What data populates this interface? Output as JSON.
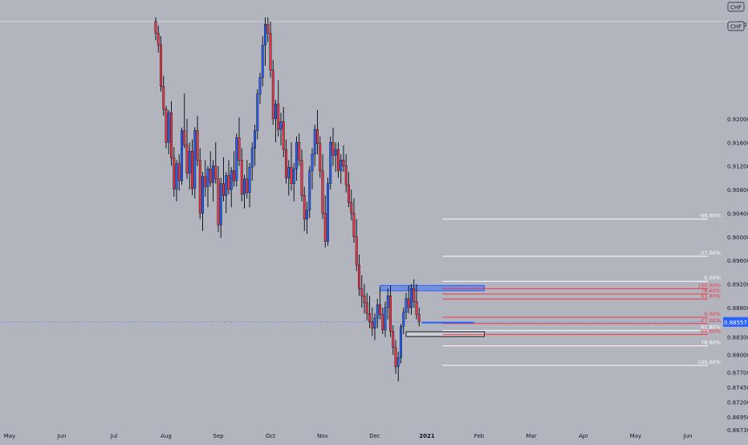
{
  "chart_data": {
    "type": "candlestick",
    "symbol_label": "CHF",
    "currency_label": "CHF",
    "top_partial_label": "0.9360",
    "top_line_price": 0.9365,
    "y_ticks": [
      "0.92000",
      "0.91600",
      "0.91200",
      "0.90800",
      "0.90400",
      "0.90000",
      "0.89600",
      "0.89200",
      "0.88800",
      "0.88300",
      "0.88000",
      "0.87700",
      "0.87450",
      "0.87200",
      "0.86950",
      "0.86730"
    ],
    "y_tick_values": [
      0.92,
      0.916,
      0.912,
      0.908,
      0.904,
      0.9,
      0.896,
      0.892,
      0.888,
      0.883,
      0.88,
      0.877,
      0.8745,
      0.872,
      0.8695,
      0.8673
    ],
    "ylim": [
      0.8658,
      0.937
    ],
    "x_labels": [
      {
        "label": "May",
        "idx": 0
      },
      {
        "label": "Jun",
        "idx": 10
      },
      {
        "label": "Jul",
        "idx": 20
      },
      {
        "label": "Aug",
        "idx": 30
      },
      {
        "label": "Sep",
        "idx": 40
      },
      {
        "label": "Oct",
        "idx": 50
      },
      {
        "label": "Nov",
        "idx": 60
      },
      {
        "label": "Dec",
        "idx": 70
      },
      {
        "label": "2021",
        "idx": 80,
        "bold": true
      },
      {
        "label": "Feb",
        "idx": 90
      },
      {
        "label": "Mar",
        "idx": 100
      },
      {
        "label": "Apr",
        "idx": 110
      },
      {
        "label": "May",
        "idx": 120
      },
      {
        "label": "Jun",
        "idx": 130
      }
    ],
    "current_price": {
      "label": "0.88557",
      "value": 0.88557,
      "color": "#2962ff"
    },
    "colors": {
      "up": "#2962ff",
      "down": "#f23645",
      "background": "#b2b5be",
      "text": "#131722",
      "fib_white": "#ffffff",
      "fib_red": "#f23645",
      "box_blue": "#2962ff"
    },
    "candles_start": 28,
    "candles_step": 0.5,
    "candles": [
      [
        0.9365,
        0.9372,
        0.9333,
        0.9345
      ],
      [
        0.9345,
        0.9358,
        0.9312,
        0.9325
      ],
      [
        0.9325,
        0.934,
        0.9246,
        0.9255
      ],
      [
        0.9255,
        0.9273,
        0.9205,
        0.9216
      ],
      [
        0.9216,
        0.9222,
        0.915,
        0.916
      ],
      [
        0.916,
        0.9215,
        0.914,
        0.921
      ],
      [
        0.921,
        0.923,
        0.912,
        0.9134
      ],
      [
        0.9134,
        0.9152,
        0.9068,
        0.9081
      ],
      [
        0.9081,
        0.913,
        0.906,
        0.9124
      ],
      [
        0.9124,
        0.914,
        0.9078,
        0.9095
      ],
      [
        0.9095,
        0.9185,
        0.9088,
        0.918
      ],
      [
        0.918,
        0.9243,
        0.915,
        0.9155
      ],
      [
        0.9155,
        0.92,
        0.9098,
        0.9108
      ],
      [
        0.9108,
        0.916,
        0.908,
        0.9145
      ],
      [
        0.9145,
        0.9165,
        0.907,
        0.9082
      ],
      [
        0.9082,
        0.9186,
        0.9065,
        0.918
      ],
      [
        0.918,
        0.9205,
        0.912,
        0.913
      ],
      [
        0.913,
        0.915,
        0.903,
        0.904
      ],
      [
        0.904,
        0.911,
        0.901,
        0.9102
      ],
      [
        0.9102,
        0.913,
        0.9068,
        0.9085
      ],
      [
        0.9085,
        0.912,
        0.905,
        0.9115
      ],
      [
        0.9115,
        0.9145,
        0.9085,
        0.9092
      ],
      [
        0.9092,
        0.913,
        0.906,
        0.912
      ],
      [
        0.912,
        0.916,
        0.909,
        0.9098
      ],
      [
        0.9098,
        0.912,
        0.9008,
        0.902
      ],
      [
        0.902,
        0.91,
        0.8998,
        0.909
      ],
      [
        0.909,
        0.9135,
        0.906,
        0.907
      ],
      [
        0.907,
        0.911,
        0.904,
        0.9104
      ],
      [
        0.9104,
        0.913,
        0.9072,
        0.908
      ],
      [
        0.908,
        0.9118,
        0.905,
        0.9112
      ],
      [
        0.9112,
        0.9145,
        0.9085,
        0.9095
      ],
      [
        0.9095,
        0.9175,
        0.9085,
        0.9168
      ],
      [
        0.9168,
        0.9202,
        0.912,
        0.913
      ],
      [
        0.913,
        0.915,
        0.906,
        0.9072
      ],
      [
        0.9072,
        0.9105,
        0.9048,
        0.9098
      ],
      [
        0.9098,
        0.913,
        0.9065,
        0.9075
      ],
      [
        0.9075,
        0.9125,
        0.905,
        0.9118
      ],
      [
        0.9118,
        0.916,
        0.9095,
        0.915
      ],
      [
        0.915,
        0.919,
        0.912,
        0.918
      ],
      [
        0.918,
        0.925,
        0.9165,
        0.9242
      ],
      [
        0.9242,
        0.9278,
        0.9225,
        0.927
      ],
      [
        0.927,
        0.934,
        0.9255,
        0.9325
      ],
      [
        0.9325,
        0.9372,
        0.929,
        0.936
      ],
      [
        0.936,
        0.9372,
        0.933,
        0.9345
      ],
      [
        0.9345,
        0.9365,
        0.927,
        0.9282
      ],
      [
        0.9282,
        0.93,
        0.919,
        0.92
      ],
      [
        0.92,
        0.9232,
        0.916,
        0.9225
      ],
      [
        0.9225,
        0.9265,
        0.917,
        0.9182
      ],
      [
        0.9182,
        0.921,
        0.9155,
        0.9195
      ],
      [
        0.9195,
        0.922,
        0.9135,
        0.9148
      ],
      [
        0.9148,
        0.9165,
        0.909,
        0.91
      ],
      [
        0.91,
        0.913,
        0.907,
        0.9118
      ],
      [
        0.9118,
        0.916,
        0.9078,
        0.909
      ],
      [
        0.909,
        0.9125,
        0.906,
        0.9115
      ],
      [
        0.9115,
        0.917,
        0.9095,
        0.916
      ],
      [
        0.916,
        0.9175,
        0.912,
        0.913
      ],
      [
        0.913,
        0.9148,
        0.906,
        0.907
      ],
      [
        0.907,
        0.9085,
        0.901,
        0.903
      ],
      [
        0.903,
        0.906,
        0.9005,
        0.9045
      ],
      [
        0.9045,
        0.912,
        0.9032,
        0.9112
      ],
      [
        0.9112,
        0.915,
        0.908,
        0.914
      ],
      [
        0.914,
        0.919,
        0.912,
        0.9182
      ],
      [
        0.9182,
        0.9215,
        0.914,
        0.9158
      ],
      [
        0.9158,
        0.917,
        0.91,
        0.9112
      ],
      [
        0.9112,
        0.914,
        0.903,
        0.904
      ],
      [
        0.904,
        0.907,
        0.8982,
        0.8992
      ],
      [
        0.8992,
        0.91,
        0.8985,
        0.909
      ],
      [
        0.909,
        0.917,
        0.908,
        0.916
      ],
      [
        0.916,
        0.9185,
        0.912,
        0.9138
      ],
      [
        0.9138,
        0.916,
        0.911,
        0.9148
      ],
      [
        0.9148,
        0.916,
        0.91,
        0.9112
      ],
      [
        0.9112,
        0.914,
        0.909,
        0.913
      ],
      [
        0.913,
        0.9155,
        0.911,
        0.912
      ],
      [
        0.912,
        0.914,
        0.9075,
        0.9088
      ],
      [
        0.9088,
        0.911,
        0.905,
        0.9058
      ],
      [
        0.9058,
        0.908,
        0.9028,
        0.904
      ],
      [
        0.904,
        0.9065,
        0.899,
        0.9
      ],
      [
        0.9,
        0.903,
        0.8942,
        0.8952
      ],
      [
        0.8952,
        0.897,
        0.89,
        0.8912
      ],
      [
        0.8912,
        0.8935,
        0.888,
        0.89
      ],
      [
        0.89,
        0.892,
        0.887,
        0.8888
      ],
      [
        0.8888,
        0.8905,
        0.8858,
        0.887
      ],
      [
        0.887,
        0.89,
        0.8845,
        0.8856
      ],
      [
        0.8856,
        0.888,
        0.8832,
        0.8845
      ],
      [
        0.8845,
        0.887,
        0.8825,
        0.8862
      ],
      [
        0.8862,
        0.8895,
        0.8845,
        0.8885
      ],
      [
        0.8885,
        0.8915,
        0.886,
        0.8868
      ],
      [
        0.8868,
        0.888,
        0.8835,
        0.8842
      ],
      [
        0.8842,
        0.889,
        0.883,
        0.888
      ],
      [
        0.888,
        0.8912,
        0.886,
        0.89
      ],
      [
        0.89,
        0.8918,
        0.883,
        0.884
      ],
      [
        0.884,
        0.885,
        0.88,
        0.8812
      ],
      [
        0.8812,
        0.8825,
        0.8768,
        0.878
      ],
      [
        0.878,
        0.8805,
        0.8755,
        0.8795
      ],
      [
        0.8795,
        0.8852,
        0.8785,
        0.8848
      ],
      [
        0.8848,
        0.888,
        0.8835,
        0.8872
      ],
      [
        0.8872,
        0.8905,
        0.886,
        0.8895
      ],
      [
        0.8895,
        0.8918,
        0.887,
        0.888
      ],
      [
        0.888,
        0.892,
        0.8868,
        0.8912
      ],
      [
        0.8912,
        0.8928,
        0.888,
        0.889
      ],
      [
        0.889,
        0.892,
        0.886,
        0.8868
      ],
      [
        0.8868,
        0.888,
        0.8848,
        0.8856
      ]
    ],
    "fib_upper": {
      "x_start": 83,
      "x_end": 138,
      "levels": [
        {
          "label": "-68.00%",
          "value": 0.903,
          "color": "white"
        },
        {
          "label": "-27.00%",
          "value": 0.8967,
          "color": "white"
        },
        {
          "label": "0.00%",
          "value": 0.89245,
          "color": "white"
        },
        {
          "label": "100.00%",
          "value": 0.8912,
          "color": "red"
        },
        {
          "label": "78.60%",
          "value": 0.8903,
          "color": "red"
        },
        {
          "label": "61.80%",
          "value": 0.88945,
          "color": "red"
        }
      ]
    },
    "fib_lower": {
      "x_start": 83,
      "x_end": 138,
      "levels": [
        {
          "label": "0.00%",
          "value": 0.88635,
          "color": "red"
        },
        {
          "label": "-27.00%",
          "value": 0.8853,
          "color": "red"
        },
        {
          "label": "61.80%",
          "value": 0.8841,
          "color": "white"
        },
        {
          "label": "-68.00%",
          "value": 0.88345,
          "color": "red"
        },
        {
          "label": "78.60%",
          "value": 0.8815,
          "color": "white"
        },
        {
          "label": "100.00%",
          "value": 0.8782,
          "color": "white"
        }
      ]
    },
    "zones": [
      {
        "name": "resistance-zone",
        "x0": 71,
        "x1": 91,
        "y_top": 0.89175,
        "y_bottom": 0.89085,
        "fill": "#2962ff"
      },
      {
        "name": "support-zone",
        "x0": 76,
        "x1": 91,
        "y_top": 0.8839,
        "y_bottom": 0.8831,
        "fill": "#ffffff"
      }
    ],
    "trendlines": [
      {
        "name": "blue-level-line",
        "x0": 79,
        "x1": 89,
        "value": 0.88545,
        "color": "#2962ff"
      }
    ]
  }
}
